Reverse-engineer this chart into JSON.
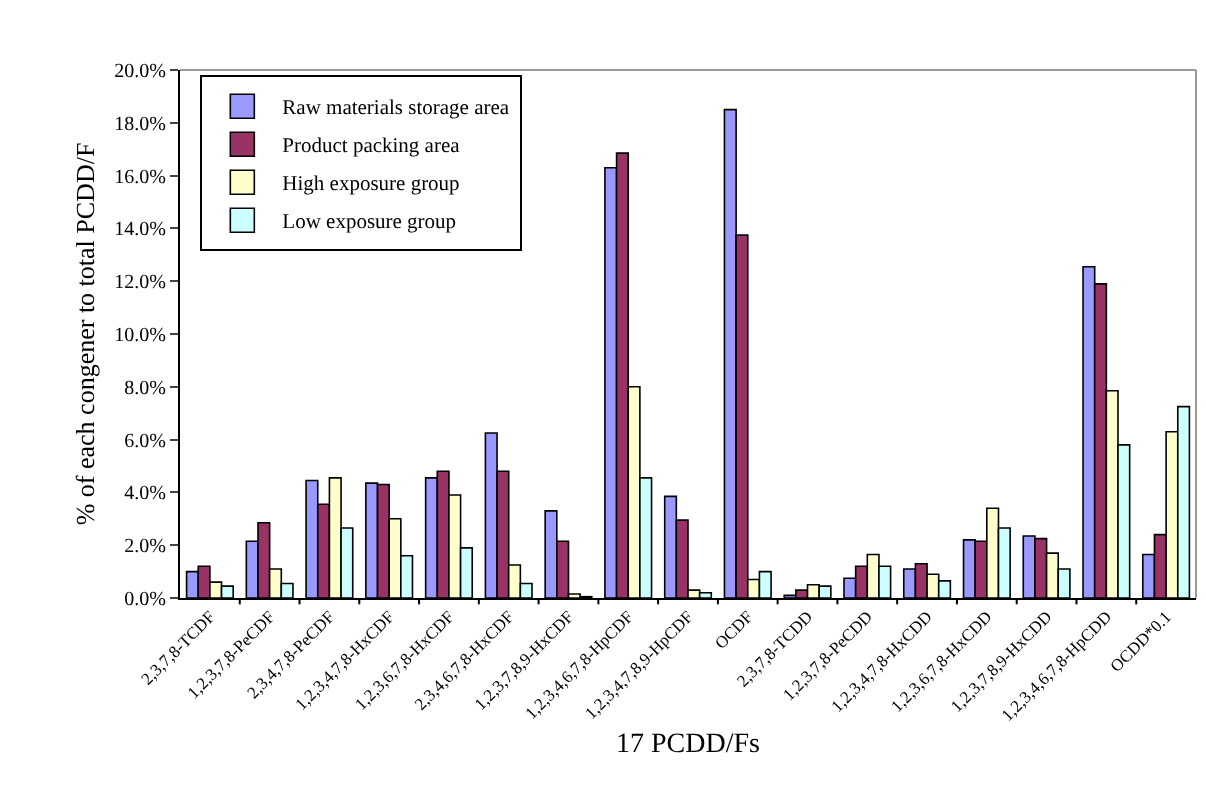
{
  "chart_data": {
    "type": "bar",
    "xlabel": "17 PCDD/Fs",
    "ylabel": "% of each congener to total PCDD/F",
    "categories": [
      "2,3,7,8-TCDF",
      "1,2,3,7,8-PeCDF",
      "2,3,4,7,8-PeCDF",
      "1,2,3,4,7,8-HxCDF",
      "1,2,3,6,7,8-HxCDF",
      "2,3,4,6,7,8-HxCDF",
      "1,2,3,7,8,9-HxCDF",
      "1,2,3,4,6,7,8-HpCDF",
      "1,2,3,4,7,8,9-HpCDF",
      "OCDF",
      "2,3,7,8-TCDD",
      "1,2,3,7,8-PeCDD",
      "1,2,3,4,7,8-HxCDD",
      "1,2,3,6,7,8-HxCDD",
      "1,2,3,7,8,9-HxCDD",
      "1,2,3,4,6,7,8-HpCDD",
      "OCDD*0.1"
    ],
    "series": [
      {
        "name": "Raw materials storage area",
        "color": "#9999ff",
        "values": [
          1.0,
          2.15,
          4.45,
          4.35,
          4.55,
          6.25,
          3.3,
          16.3,
          3.85,
          18.5,
          0.1,
          0.75,
          1.1,
          2.2,
          2.35,
          12.55,
          1.65
        ]
      },
      {
        "name": "Product packing area",
        "color": "#993366",
        "values": [
          1.2,
          2.85,
          3.55,
          4.3,
          4.8,
          4.8,
          2.15,
          16.85,
          2.95,
          13.75,
          0.3,
          1.2,
          1.3,
          2.15,
          2.25,
          11.9,
          2.4
        ]
      },
      {
        "name": "High exposure group",
        "color": "#ffffcc",
        "values": [
          0.6,
          1.1,
          4.55,
          3.0,
          3.9,
          1.25,
          0.15,
          8.0,
          0.3,
          0.7,
          0.5,
          1.65,
          0.9,
          3.4,
          1.7,
          7.85,
          6.3
        ]
      },
      {
        "name": "Low exposure group",
        "color": "#ccffff",
        "values": [
          0.45,
          0.55,
          2.65,
          1.6,
          1.9,
          0.55,
          0.05,
          4.55,
          0.2,
          1.0,
          0.45,
          1.2,
          0.65,
          2.65,
          1.1,
          5.8,
          7.25
        ]
      }
    ],
    "ylim": [
      0,
      20
    ],
    "yticks": [
      {
        "value": 0,
        "label": "0.0%"
      },
      {
        "value": 2,
        "label": "2.0%"
      },
      {
        "value": 4,
        "label": "4.0%"
      },
      {
        "value": 6,
        "label": "6.0%"
      },
      {
        "value": 8,
        "label": "8.0%"
      },
      {
        "value": 10,
        "label": "10.0%"
      },
      {
        "value": 12,
        "label": "12.0%"
      },
      {
        "value": 14,
        "label": "14.0%"
      },
      {
        "value": 16,
        "label": "16.0%"
      },
      {
        "value": 18,
        "label": "18.0%"
      },
      {
        "value": 20,
        "label": "20.0%"
      }
    ],
    "grid": false,
    "legend": "top left"
  }
}
